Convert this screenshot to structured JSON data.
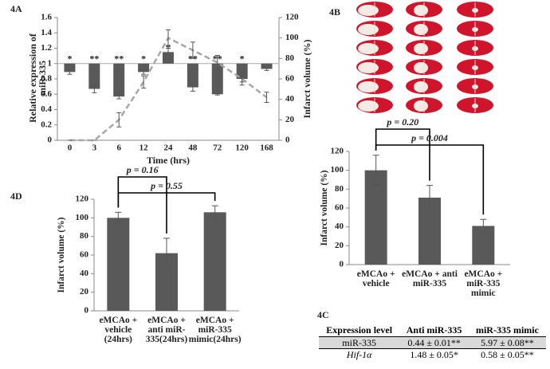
{
  "chart_data": [
    {
      "type": "bar",
      "panel": "4A",
      "categories": [
        "0",
        "3",
        "6",
        "12",
        "24",
        "48",
        "72",
        "120",
        "168"
      ],
      "xlabel": "Time (hrs)",
      "ylabel": "Relative expression of miR-335",
      "y2label": "Infarct volume (%)",
      "ylim": [
        0,
        1.6
      ],
      "yticks": [
        0,
        0.2,
        0.4,
        0.6,
        0.8,
        1,
        1.2,
        1.4,
        1.6
      ],
      "y2lim": [
        0,
        120
      ],
      "y2ticks": [
        0,
        20,
        40,
        60,
        80,
        100,
        120
      ],
      "baseline": 1,
      "series": [
        {
          "type": "bar",
          "color": "#595959",
          "values": [
            0.89,
            0.67,
            0.57,
            0.89,
            1.15,
            0.69,
            0.6,
            0.8,
            0.93
          ],
          "errors": [
            0.03,
            0.05,
            0.03,
            0.03,
            0.05,
            0.05,
            0.01,
            0.04,
            0.02
          ],
          "annotations": [
            "*",
            "**",
            "**",
            "*",
            "*",
            "**",
            "**",
            "*",
            null
          ]
        },
        {
          "type": "line",
          "axis": "y2",
          "dashed": true,
          "color": "#a6a6a6",
          "values": [
            0,
            0,
            20,
            57,
            100,
            88,
            76,
            60,
            42
          ],
          "errors": [
            0,
            0,
            7,
            6,
            8,
            8,
            7,
            6,
            5
          ]
        }
      ]
    },
    {
      "type": "bar",
      "panel": "4B",
      "categories": [
        "eMCAo + vehicle",
        "eMCAo + anti miR-335",
        "eMCAo + miR-335 mimic"
      ],
      "ylabel": "Infarct volume (%)",
      "ylim": [
        0,
        120
      ],
      "yticks": [
        0,
        20,
        40,
        60,
        80,
        100,
        120
      ],
      "series": [
        {
          "type": "bar",
          "color": "#595959",
          "values": [
            100,
            71,
            41
          ],
          "errors": [
            16,
            13,
            7
          ]
        }
      ],
      "annotations": [
        "p = 0.20",
        "p = 0.004"
      ]
    },
    {
      "type": "bar",
      "panel": "4D",
      "categories": [
        "eMCAo + vehicle (24hrs)",
        "eMCAo + anti miR-335(24hrs)",
        "eMCAo + miR-335 mimic(24hrs)"
      ],
      "ylabel": "Infarct volume (%)",
      "ylim": [
        0,
        120
      ],
      "yticks": [
        0,
        20,
        40,
        60,
        80,
        100,
        120
      ],
      "series": [
        {
          "type": "bar",
          "color": "#595959",
          "values": [
            100,
            62,
            106
          ],
          "errors": [
            6,
            16,
            7
          ]
        }
      ],
      "annotations": [
        "p = 0.16",
        "p = 0.55"
      ]
    }
  ],
  "table": {
    "panel": "4C",
    "header": [
      "Expression level",
      "Anti miR-335",
      "miR-335 mimic"
    ],
    "rows": [
      [
        "miR-335",
        "0.44 ± 0.01**",
        "5.97 ± 0.08**"
      ],
      [
        "Hif-1α",
        "1.48 ± 0.05*",
        "0.58 ± 0.05**"
      ]
    ]
  }
}
